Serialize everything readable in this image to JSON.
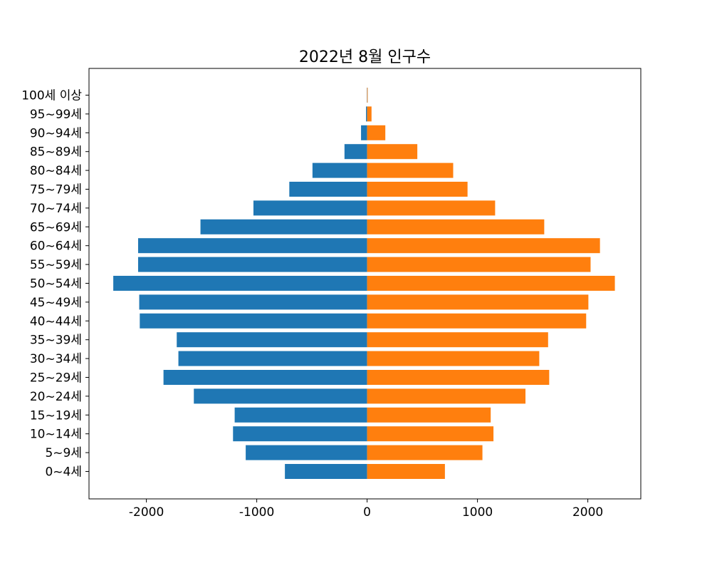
{
  "chart_data": {
    "type": "bar",
    "orientation": "horizontal",
    "title": "2022년 8월 인구수",
    "xlabel": "",
    "ylabel": "",
    "xlim": [
      -2520,
      2480
    ],
    "x_ticks": [
      -2000,
      -1000,
      0,
      1000,
      2000
    ],
    "x_tick_labels": [
      "-2000",
      "-1000",
      "0",
      "1000",
      "2000"
    ],
    "grid": false,
    "categories": [
      "0~4세",
      "5~9세",
      "10~14세",
      "15~19세",
      "20~24세",
      "25~29세",
      "30~34세",
      "35~39세",
      "40~44세",
      "45~49세",
      "50~54세",
      "55~59세",
      "60~64세",
      "65~69세",
      "70~74세",
      "75~79세",
      "80~84세",
      "85~89세",
      "90~94세",
      "95~99세",
      "100세 이상"
    ],
    "series": [
      {
        "color": "#1f77b4",
        "values": [
          -745,
          -1100,
          -1215,
          -1200,
          -1570,
          -1845,
          -1710,
          -1725,
          -2060,
          -2065,
          -2300,
          -2075,
          -2075,
          -1510,
          -1030,
          -705,
          -495,
          -205,
          -55,
          -10,
          -2
        ]
      },
      {
        "color": "#ff7f0e",
        "values": [
          705,
          1045,
          1145,
          1120,
          1435,
          1650,
          1560,
          1640,
          1985,
          2005,
          2245,
          2025,
          2110,
          1605,
          1160,
          910,
          780,
          455,
          165,
          40,
          3
        ]
      }
    ]
  }
}
